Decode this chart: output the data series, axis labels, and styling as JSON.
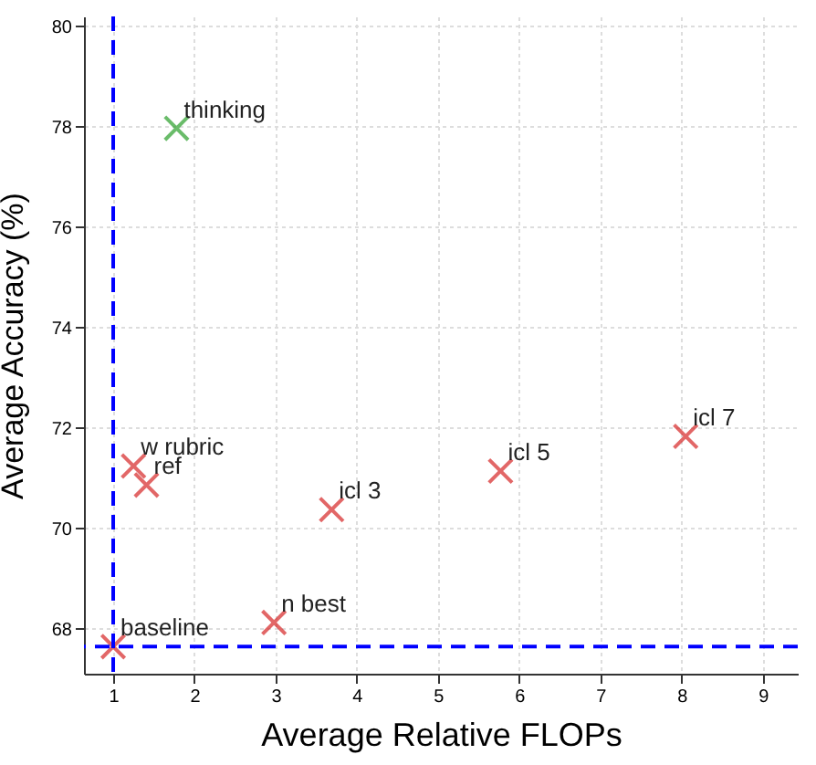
{
  "chart_data": {
    "type": "scatter",
    "xlabel": "Average Relative FLOPs",
    "ylabel": "Average Accuracy (%)",
    "series": [
      {
        "color": "#d62728",
        "x": [
          1.0,
          1.25,
          1.41,
          2.98,
          3.69,
          5.77,
          8.05
        ],
        "values": [
          67.64,
          71.24,
          70.86,
          68.12,
          70.37,
          71.14,
          71.83
        ]
      },
      {
        "color": "#2ca02c",
        "x": [
          1.78
        ],
        "values": [
          77.97
        ]
      }
    ],
    "annotations": [
      {
        "text": "baseline",
        "x": 1.0,
        "y": 67.64
      },
      {
        "text": "w rubric",
        "x": 1.25,
        "y": 71.24
      },
      {
        "text": "ref",
        "x": 1.41,
        "y": 70.86
      },
      {
        "text": "n best",
        "x": 2.98,
        "y": 68.12
      },
      {
        "text": "icl 3",
        "x": 3.69,
        "y": 70.37
      },
      {
        "text": "icl 5",
        "x": 5.77,
        "y": 71.14
      },
      {
        "text": "icl 7",
        "x": 8.05,
        "y": 71.83
      },
      {
        "text": "thinking",
        "x": 1.78,
        "y": 77.97
      }
    ],
    "ref_lines": [
      {
        "axis": "x",
        "value": 1,
        "color": "#0000ff",
        "line_style": "dashed"
      },
      {
        "axis": "y",
        "value": 67.64,
        "color": "#0000ff",
        "line_style": "dashed"
      }
    ],
    "xlim": [
      0.64,
      9.43
    ],
    "ylim": [
      67.1,
      80.2
    ],
    "xticks": [
      1,
      2,
      3,
      4,
      5,
      6,
      7,
      8,
      9
    ],
    "yticks": [
      68,
      70,
      72,
      74,
      76,
      78,
      80
    ],
    "grid": true,
    "marker": "cross"
  }
}
